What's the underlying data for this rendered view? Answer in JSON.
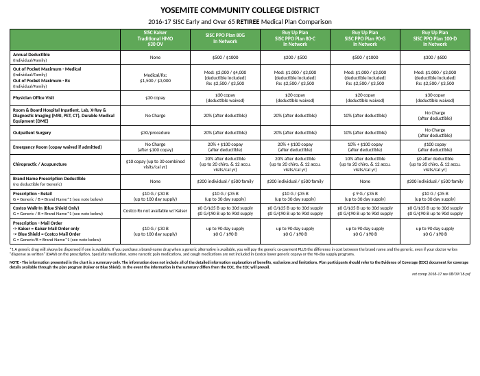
{
  "title": "YOSEMITE COMMUNITY COLLEGE DISTRICT",
  "subtitle_prefix": "2016-17 SISC Early and Over 65 ",
  "subtitle_bold": "RETIREE",
  "subtitle_suffix": " Medical Plan Comparison",
  "columns": [
    {
      "l1": "",
      "l2": "",
      "l3": ""
    },
    {
      "l1": "SISC Kaiser",
      "l2": "Traditional HMO",
      "l3": "$30 OV"
    },
    {
      "l1": "",
      "l2": "SISC PPO Plan 80G",
      "l3": "In Network"
    },
    {
      "l1": "Buy Up Plan",
      "l2": "SISC PPO Plan 80-C",
      "l3": "In Network"
    },
    {
      "l1": "Buy Up Plan",
      "l2": "SISC PPO Plan 90-G",
      "l3": "In Network"
    },
    {
      "l1": "Buy Up Plan",
      "l2": "SISC PPO Plan 100-D",
      "l3": "In Network"
    }
  ],
  "rows": [
    {
      "label": "Annual Deductible\n(Individual/Family)",
      "cells": [
        "None",
        "$500 / $1000",
        "$200 / $500",
        "$500 / $1000",
        "$300 / $600"
      ]
    },
    {
      "label": "Out of Pocket Maximum - Medical\n(Individual/Family)\nOut of Pocket Maximum - Rx\n(Individual/Family)",
      "cells": [
        "Medical/Rx:\n$1,500 / $3,000",
        "Med: $2,000 / $4,000\n(deductible included)\nRx: $2,500 / $3,500",
        "Med: $1,000 / $3,000\n(deductible included)\nRx: $2,500 / $3,500",
        "Med: $1,000 / $3,000\n(deductible included)\nRx: $2,500 / $3,500",
        "Med: $1,000 / $3,000\n(deductible included)\nRx: $2,500 / $3,500"
      ]
    },
    {
      "label": "Physician Office Visit",
      "cells": [
        "$30 copay",
        "$30 copay\n(deductible waived)",
        "$20 copay\n(deductible waived)",
        "$20 copay\n(deductible waived)",
        "$30 copay\n(deductible waived)"
      ]
    },
    {
      "label": "Room & Board Hospital Inpatient, Lab, X-Ray & Diagnostic Imaging (MRI, PET, CT), Durable Medical Equipment (DME)",
      "cells": [
        "No Charge",
        "20% (after deductible)",
        "20% (after deductible)",
        "10% (after deductible)",
        "No Charge\n(after deductible)"
      ]
    },
    {
      "label": "Outpatient Surgery",
      "cells": [
        "$30/procedure",
        "20% (after deductible)",
        "20% (after deductible)",
        "10% (after deductible)",
        "No Charge\n(after deductible)"
      ]
    },
    {
      "label": "Emergency Room (copay waived if admitted)",
      "cells": [
        "No Charge\n(after $100 copay)",
        "20% + $100 copay\n(after deductible)",
        "20% + $100 copay\n(after deductible)",
        "10% + $100 copay\n(after deductible)",
        "$100 copay\n(after deductible)"
      ]
    },
    {
      "label": "Chiropractic / Acupuncture",
      "cells": [
        "$10 copay (up to 30 combined visits/cal yr)",
        "20% after deductible\n(up to 20 chiro. & 12 accu. visits/cal yr)",
        "20% after deductible\n(up to 20 chiro. & 12 accu. visits/cal yr)",
        "10% after deductible\n(up to 20 chiro. & 12 accu. visits/cal yr)",
        "$0 after deductible\n(up to 20 chiro. & 12 accu. visits/cal yr)"
      ]
    },
    {
      "label": "Brand Name Prescription Deductible\n(no deductible for Generic)",
      "cells": [
        "None",
        "$200 individual / $500 family",
        "$200 individual / $500 family",
        "None",
        "$200 individual / $500 family"
      ]
    },
    {
      "label": "Prescription - Retail\nG = Generic / B = Brand Name*1 (see note below)",
      "cells": [
        "$10 G / $30 B\n(up to 100 day supply)",
        "$10 G / $35 B\n(up to 30 day supply)",
        "$10 G / $35 B\n(up to 30 day supply)",
        "$ 9 G / $35 B\n(up to 30 day supply)",
        "$10 G / $35 B\n(up to 30 day supply)"
      ]
    },
    {
      "label": "    Costco Walk-In  (Blue Shield Only)\n    G = Generic / B = Brand Name*1 (see note below)",
      "cells": [
        "Costco Rx not available w/ Kaiser",
        "$0 G/$35 B up to 30d supply\n$0 G/$90 B up to 90d supply",
        "$0 G/$35 B up to 30d supply\n$0 G/$90 B up to 90d supply",
        "$0 G/$35 B up to 30d supply\n$0 G/$90 B up to 90d supply",
        "$0 G/$35 B up to 30d supply\n$0 G/$90 B up to 90d supply"
      ]
    },
    {
      "label": "Prescription - Mail Order\n  -> Kaiser = Kaiser Mail Order only\n  -> Blue Shield = Costco Mail Order\nG = Generic/B = Brand Name*1 (see note below)",
      "cells": [
        "$10 G / $30 B\n(up to 100 day supply)",
        "up to 90 day supply\n$0 G / $90 B",
        "up to 90 day supply\n$0 G / $90 B",
        "up to 90 day supply\n$0 G / $90 B",
        "up to 90 day supply\n$0 G / $90 B"
      ]
    }
  ],
  "footnote1": "*1  A generic drug will always be dispensed if one is available. If you purchase a brand-name drug when a generic alternative is available, you will pay the generic co-payment PLUS the difference in cost between the brand name and the generic, even if your doctor writes \"dispense as written\" (DAW) on the prescription.  Specialty medication, some narcotic pain medications, and cough medications are not included in Costco lower generic copays or the 90-day supply programs.",
  "footnote2": "NOTE · The information presented in the chart is a summary only.  The information does not include all of the detailed information explanation of benefits, exclusions and limitations.  Plan participants should refer to the Evidence of Coverage (EOC) document for coverage details available through the plan program (Kaiser or Blue Shield).  In the event the information in the summary differs from the EOC, the EOC will prevail.",
  "footer": "ret comp 2016-17 rev 08/09/16 psf",
  "colors": {
    "header_bg": "#5fa858"
  }
}
